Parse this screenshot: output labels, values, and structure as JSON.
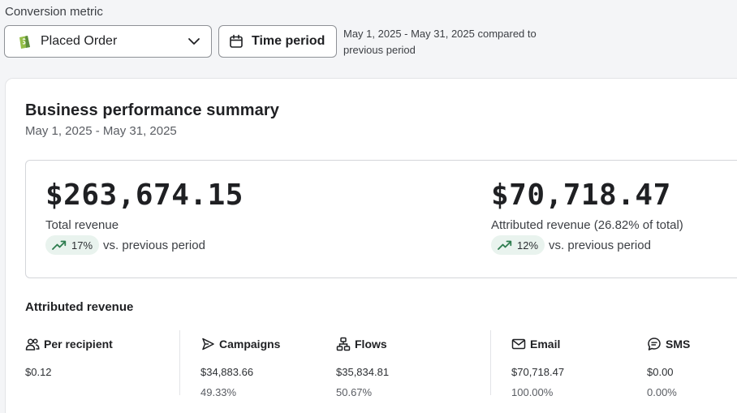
{
  "filters": {
    "conversion_metric_label": "Conversion metric",
    "metric_selected": "Placed Order",
    "time_button_label": "Time period",
    "range_note": "May 1, 2025 - May 31, 2025 compared to previous period"
  },
  "summary": {
    "title": "Business performance summary",
    "date_range": "May 1, 2025 - May 31, 2025",
    "total": {
      "value": "$263,674.15",
      "label": "Total revenue",
      "change": "17%",
      "vs": "vs. previous period"
    },
    "attributed": {
      "value": "$70,718.47",
      "label": "Attributed revenue (26.82% of total)",
      "change": "12%",
      "vs": "vs. previous period"
    }
  },
  "attributed_revenue": {
    "title": "Attributed revenue",
    "columns": [
      {
        "name": "Per recipient",
        "icon": "people-icon",
        "value": "$0.12",
        "pct": ""
      },
      {
        "name": "Campaigns",
        "icon": "send-icon",
        "value": "$34,883.66",
        "pct": "49.33%"
      },
      {
        "name": "Flows",
        "icon": "flow-icon",
        "value": "$35,834.81",
        "pct": "50.67%"
      },
      {
        "name": "Email",
        "icon": "mail-icon",
        "value": "$70,718.47",
        "pct": "100.00%"
      },
      {
        "name": "SMS",
        "icon": "sms-icon",
        "value": "$0.00",
        "pct": "0.00%"
      }
    ]
  },
  "colors": {
    "trend_up": "#2e7d4f",
    "pill_bg": "#e9f3ee",
    "shop_green": "#5e8e3e"
  }
}
